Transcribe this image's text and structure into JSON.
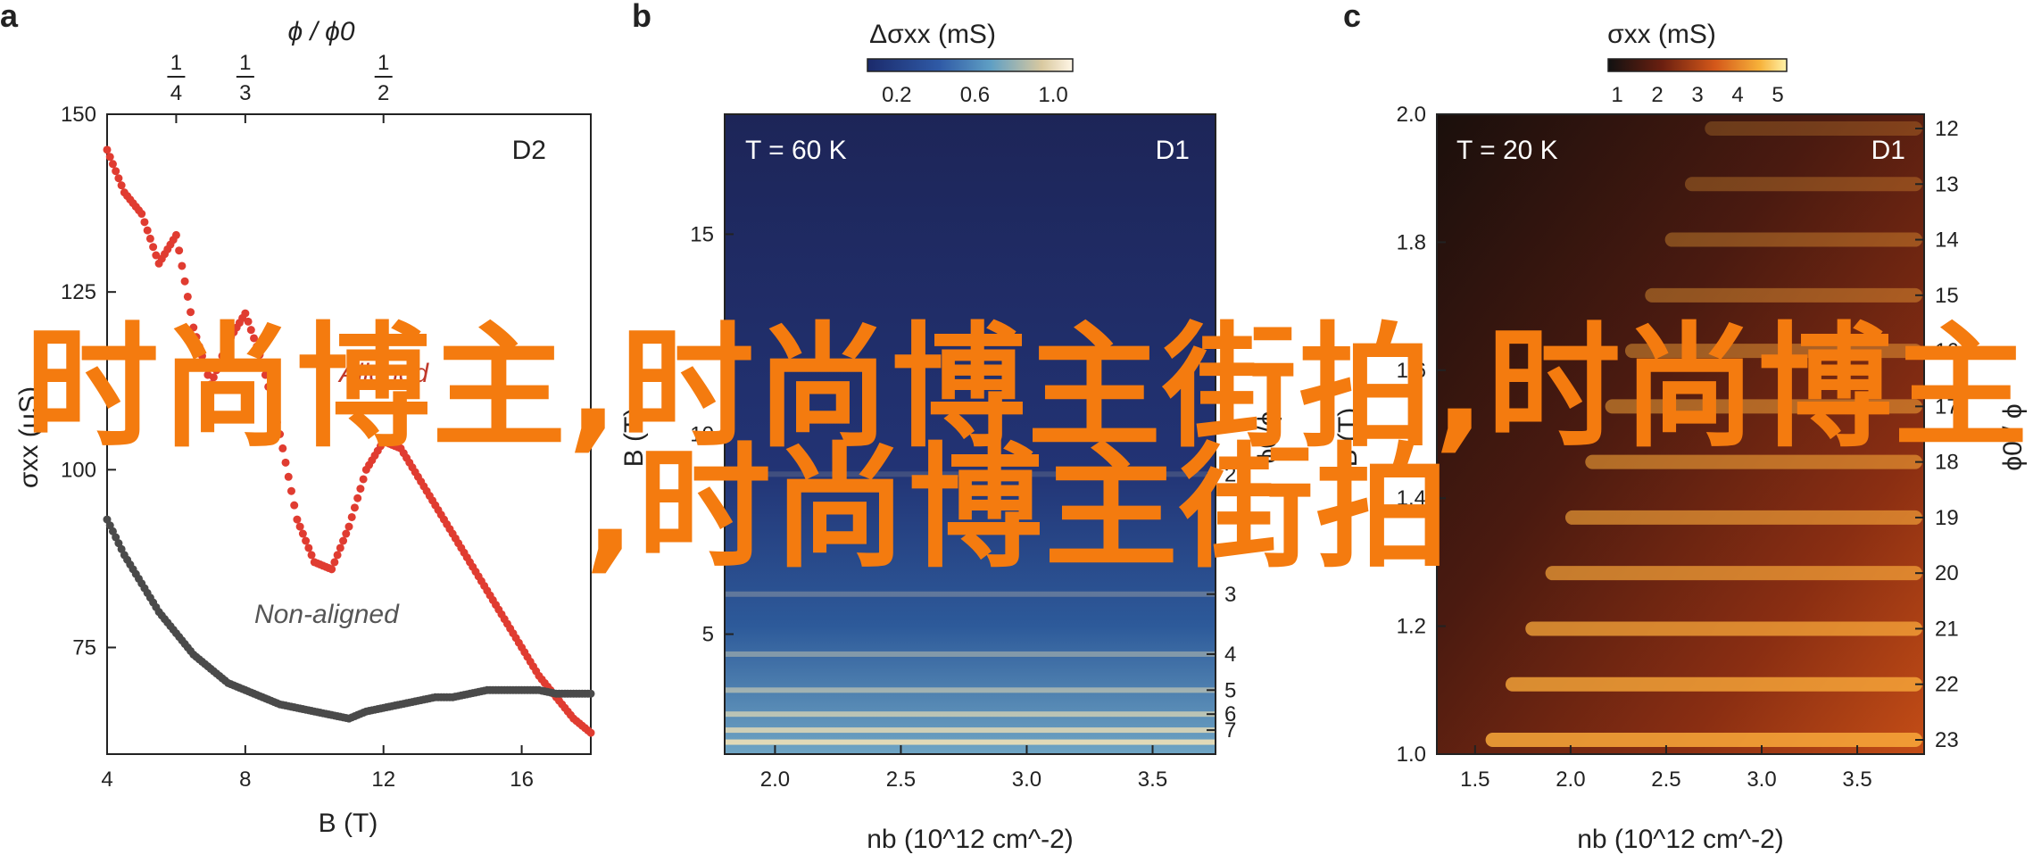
{
  "overlay": {
    "line1": "时尚博主,时尚博主街拍,时尚博主",
    "line2": ",时尚博主街拍"
  },
  "panels": {
    "a": {
      "letter": "a",
      "tag": "D2",
      "xlabel": "B (T)",
      "ylabel": "σxx (μS)",
      "top_axis_label": "ϕ / ϕ0",
      "label_aligned": "Aligned",
      "label_nonaligned": "Non-aligned"
    },
    "b": {
      "letter": "b",
      "tag": "D1",
      "temp": "T = 60 K",
      "xlabel": "nb (10^12 cm^-2)",
      "ylabel": "B (T)",
      "right_label": "ϕ0/ϕ",
      "cbar_label": "Δσxx (mS)"
    },
    "c": {
      "letter": "c",
      "tag": "D1",
      "temp": "T = 20 K",
      "xlabel": "nb (10^12 cm^-2)",
      "ylabel": "B (T)",
      "right_label": "ϕ0 / ϕ",
      "cbar_label": "σxx (mS)"
    }
  },
  "colors": {
    "aligned": "#e03c31",
    "nonaligned": "#4a4a4a",
    "text": "#222222"
  },
  "chart_data": [
    {
      "type": "scatter",
      "panel": "a",
      "xlim": [
        4,
        18
      ],
      "ylim": [
        60,
        150
      ],
      "xticks": [
        4,
        8,
        12,
        16
      ],
      "yticks": [
        75,
        100,
        125,
        150
      ],
      "top_ticks": [
        {
          "b": 6,
          "label": "1/4"
        },
        {
          "b": 8,
          "label": "1/3"
        },
        {
          "b": 12,
          "label": "1/2"
        }
      ],
      "series": [
        {
          "name": "Aligned",
          "color": "#e03c31",
          "x": [
            4.0,
            4.5,
            5.0,
            5.5,
            6.0,
            6.5,
            7.0,
            7.5,
            8.0,
            8.5,
            9.0,
            9.5,
            10.0,
            10.5,
            11.0,
            11.5,
            12.0,
            12.5,
            13.0,
            13.5,
            14.0,
            14.5,
            15.0,
            15.5,
            16.0,
            16.5,
            17.0,
            17.5,
            18.0
          ],
          "y": [
            145,
            139,
            136,
            129,
            133,
            120,
            112,
            118,
            122,
            115,
            105,
            93,
            87,
            86,
            92,
            100,
            104,
            103,
            99,
            95,
            91,
            87,
            83,
            79,
            75,
            71,
            68,
            65,
            63
          ]
        },
        {
          "name": "Non-aligned",
          "color": "#4a4a4a",
          "x": [
            4.0,
            4.5,
            5.0,
            5.5,
            6.0,
            6.5,
            7.0,
            7.5,
            8.0,
            8.5,
            9.0,
            9.5,
            10.0,
            10.5,
            11.0,
            11.5,
            12.0,
            12.5,
            13.0,
            13.5,
            14.0,
            14.5,
            15.0,
            15.5,
            16.0,
            16.5,
            17.0,
            17.5,
            18.0
          ],
          "y": [
            93,
            88,
            84,
            80,
            77,
            74,
            72,
            70,
            69,
            68,
            67,
            66.5,
            66,
            65.5,
            65,
            66,
            66.5,
            67,
            67.5,
            68,
            68,
            68.5,
            69,
            69,
            69,
            69,
            68.5,
            68.5,
            68.5
          ]
        }
      ]
    },
    {
      "type": "heatmap",
      "panel": "b",
      "xlim": [
        1.8,
        3.75
      ],
      "ylim": [
        2,
        18
      ],
      "xticks": [
        2.0,
        2.5,
        3.0,
        3.5
      ],
      "yticks": [
        5,
        10,
        15
      ],
      "right_ticks": [
        {
          "b": 9.0,
          "label": "2"
        },
        {
          "b": 6.0,
          "label": "3"
        },
        {
          "b": 4.5,
          "label": "4"
        },
        {
          "b": 3.6,
          "label": "5"
        },
        {
          "b": 3.0,
          "label": "6"
        },
        {
          "b": 2.6,
          "label": "7"
        }
      ],
      "colorbar": {
        "ticks": [
          "0.2",
          "0.6",
          "1.0"
        ]
      },
      "fringe_B": [
        9.0,
        6.0,
        4.5,
        3.6,
        3.0,
        2.6,
        2.3
      ]
    },
    {
      "type": "heatmap",
      "panel": "c",
      "xlim": [
        1.3,
        3.85
      ],
      "ylim": [
        1.0,
        2.0
      ],
      "xticks": [
        1.5,
        2.0,
        2.5,
        3.0,
        3.5
      ],
      "yticks": [
        1.0,
        1.2,
        1.4,
        1.6,
        1.8,
        2.0
      ],
      "right_ticks": [
        "12",
        "13",
        "14",
        "15",
        "16",
        "17",
        "18",
        "19",
        "20",
        "21",
        "22",
        "23"
      ],
      "colorbar": {
        "ticks": [
          "1",
          "2",
          "3",
          "4",
          "5"
        ]
      }
    }
  ]
}
